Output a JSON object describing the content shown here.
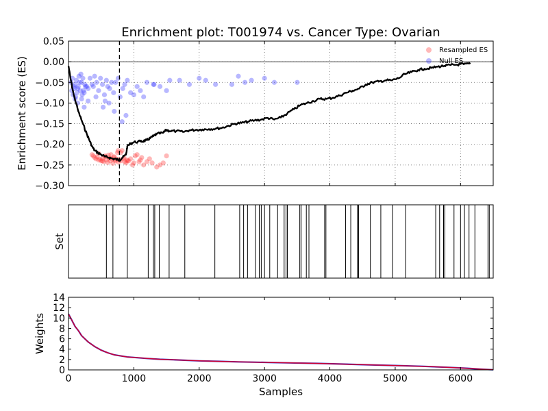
{
  "title": "Enrichment plot: T001974 vs. Cancer Type: Ovarian",
  "colors": {
    "es_line": "#000000",
    "resampled": "#ff3333",
    "null": "#3333ff",
    "weights_line": "#cc0033",
    "weights_edge": "#3333cc",
    "grid": "#666666"
  },
  "chart_data": [
    {
      "name": "es-panel",
      "type": "line+scatter",
      "title": "Enrichment plot: T001974 vs. Cancer Type: Ovarian",
      "xlabel": "",
      "ylabel": "Enrichment score (ES)",
      "xlim": [
        0,
        6500
      ],
      "ylim": [
        -0.3,
        0.05
      ],
      "yticks": [
        -0.3,
        -0.25,
        -0.2,
        -0.15,
        -0.1,
        -0.05,
        0.0,
        0.05
      ],
      "ytick_labels": [
        "−0.30",
        "−0.25",
        "−0.20",
        "−0.15",
        "−0.10",
        "−0.05",
        "0.00",
        "0.05"
      ],
      "xticks": [
        1000,
        2000,
        3000,
        4000,
        5000,
        6000
      ],
      "grid": true,
      "legend": {
        "placement": "top-right",
        "entries": [
          "Resampled ES",
          "Null ES"
        ]
      },
      "vline_x": 780,
      "es_curve": {
        "x": [
          0,
          30,
          80,
          150,
          220,
          280,
          320,
          360,
          400,
          450,
          500,
          560,
          620,
          680,
          730,
          780,
          820,
          880,
          900,
          950,
          1000,
          1100,
          1150,
          1200,
          1250,
          1300,
          1350,
          1450,
          1500,
          1550,
          1650,
          1750,
          1850,
          1950,
          2050,
          2150,
          2250,
          2350,
          2450,
          2550,
          2650,
          2750,
          2850,
          2950,
          3050,
          3150,
          3250,
          3350,
          3450,
          3550,
          3650,
          3750,
          3850,
          3950,
          4050,
          4150,
          4250,
          4350,
          4450,
          4550,
          4650,
          4750,
          4850,
          4950,
          5050,
          5150,
          5250,
          5350,
          5450,
          5550,
          5650,
          5750,
          5850,
          5950,
          6050,
          6150
        ],
        "y": [
          -0.01,
          -0.04,
          -0.08,
          -0.12,
          -0.15,
          -0.175,
          -0.19,
          -0.205,
          -0.215,
          -0.22,
          -0.225,
          -0.23,
          -0.232,
          -0.235,
          -0.236,
          -0.238,
          -0.233,
          -0.225,
          -0.205,
          -0.198,
          -0.195,
          -0.193,
          -0.192,
          -0.19,
          -0.185,
          -0.18,
          -0.175,
          -0.172,
          -0.165,
          -0.168,
          -0.168,
          -0.17,
          -0.166,
          -0.165,
          -0.164,
          -0.163,
          -0.162,
          -0.16,
          -0.155,
          -0.15,
          -0.148,
          -0.145,
          -0.142,
          -0.14,
          -0.136,
          -0.14,
          -0.135,
          -0.125,
          -0.115,
          -0.105,
          -0.1,
          -0.095,
          -0.09,
          -0.09,
          -0.087,
          -0.082,
          -0.075,
          -0.07,
          -0.065,
          -0.055,
          -0.05,
          -0.048,
          -0.045,
          -0.045,
          -0.04,
          -0.03,
          -0.025,
          -0.02,
          -0.017,
          -0.015,
          -0.012,
          -0.01,
          -0.008,
          -0.007,
          -0.006,
          -0.005
        ]
      },
      "resampled_es": {
        "x": [
          360,
          380,
          400,
          420,
          440,
          460,
          480,
          500,
          520,
          540,
          560,
          580,
          600,
          620,
          640,
          660,
          680,
          700,
          720,
          740,
          760,
          780,
          800,
          820,
          840,
          860,
          880,
          900,
          920,
          950,
          980,
          1000,
          1020,
          1050,
          1080,
          1100,
          1120,
          1150,
          1200,
          1240,
          1280,
          1350,
          1400,
          1450,
          1500,
          460,
          520,
          560,
          610,
          650,
          700,
          750,
          800,
          850,
          900,
          700,
          760
        ],
        "y": [
          -0.225,
          -0.228,
          -0.232,
          -0.235,
          -0.23,
          -0.238,
          -0.236,
          -0.24,
          -0.234,
          -0.242,
          -0.23,
          -0.238,
          -0.244,
          -0.233,
          -0.24,
          -0.235,
          -0.246,
          -0.238,
          -0.24,
          -0.236,
          -0.243,
          -0.237,
          -0.24,
          -0.215,
          -0.235,
          -0.242,
          -0.245,
          -0.238,
          -0.24,
          -0.235,
          -0.25,
          -0.245,
          -0.228,
          -0.225,
          -0.242,
          -0.238,
          -0.232,
          -0.25,
          -0.242,
          -0.235,
          -0.245,
          -0.255,
          -0.25,
          -0.245,
          -0.228,
          -0.222,
          -0.24,
          -0.228,
          -0.226,
          -0.225,
          -0.232,
          -0.22,
          -0.22,
          -0.232,
          -0.24,
          -0.23,
          -0.215
        ]
      },
      "null_es": {
        "x": [
          40,
          60,
          80,
          100,
          120,
          140,
          160,
          180,
          200,
          220,
          240,
          260,
          50,
          70,
          90,
          110,
          130,
          150,
          170,
          190,
          210,
          230,
          250,
          280,
          300,
          330,
          360,
          380,
          400,
          430,
          460,
          490,
          520,
          550,
          580,
          600,
          630,
          660,
          690,
          720,
          760,
          790,
          830,
          860,
          900,
          950,
          1000,
          1050,
          1100,
          1150,
          1200,
          1300,
          1400,
          1500,
          1550,
          1700,
          1850,
          2000,
          2100,
          2250,
          2500,
          2600,
          2700,
          2800,
          3000,
          3150,
          3500,
          200,
          300,
          420,
          530,
          620,
          700,
          820,
          880,
          560,
          140,
          240,
          100,
          1310
        ],
        "y": [
          -0.05,
          -0.04,
          -0.06,
          -0.055,
          -0.045,
          -0.065,
          -0.035,
          -0.07,
          -0.05,
          -0.04,
          -0.075,
          -0.06,
          -0.07,
          -0.08,
          -0.065,
          -0.085,
          -0.075,
          -0.06,
          -0.05,
          -0.03,
          -0.08,
          -0.07,
          -0.055,
          -0.06,
          -0.065,
          -0.04,
          -0.055,
          -0.06,
          -0.035,
          -0.05,
          -0.07,
          -0.04,
          -0.055,
          -0.08,
          -0.045,
          -0.06,
          -0.065,
          -0.05,
          -0.075,
          -0.05,
          -0.04,
          -0.085,
          -0.065,
          -0.055,
          -0.045,
          -0.075,
          -0.08,
          -0.06,
          -0.07,
          -0.085,
          -0.05,
          -0.055,
          -0.06,
          -0.07,
          -0.045,
          -0.045,
          -0.055,
          -0.04,
          -0.045,
          -0.055,
          -0.055,
          -0.035,
          -0.05,
          -0.045,
          -0.04,
          -0.05,
          -0.05,
          -0.09,
          -0.095,
          -0.085,
          -0.11,
          -0.1,
          -0.12,
          -0.145,
          -0.13,
          -0.095,
          -0.1,
          -0.11,
          -0.09,
          -0.055
        ]
      }
    },
    {
      "name": "set-panel",
      "type": "event-lines",
      "xlabel": "",
      "ylabel": "Set",
      "xlim": [
        0,
        6500
      ],
      "positions": [
        580,
        680,
        900,
        1220,
        1300,
        1320,
        1390,
        1540,
        1780,
        2240,
        2620,
        2680,
        2740,
        2860,
        2920,
        2950,
        3000,
        3080,
        3200,
        3300,
        3330,
        3350,
        3540,
        3560,
        3640,
        3680,
        3920,
        3940,
        4240,
        4320,
        4420,
        4440,
        4620,
        4780,
        4960,
        5160,
        5620,
        5680,
        5740,
        5760,
        5900,
        6000,
        6060,
        6130,
        6220,
        6420,
        6440
      ]
    },
    {
      "name": "weights-panel",
      "type": "line",
      "xlabel": "Samples",
      "ylabel": "Weights",
      "xlim": [
        0,
        6500
      ],
      "ylim": [
        0,
        14
      ],
      "yticks": [
        0,
        2,
        4,
        6,
        8,
        10,
        12,
        14
      ],
      "xticks": [
        0,
        1000,
        2000,
        3000,
        4000,
        5000,
        6000
      ],
      "weights_curve": {
        "x": [
          0,
          25,
          50,
          100,
          150,
          200,
          300,
          400,
          500,
          600,
          700,
          800,
          900,
          1000,
          1200,
          1400,
          1600,
          1800,
          2000,
          2300,
          2600,
          3000,
          3400,
          3800,
          4200,
          4600,
          5000,
          5400,
          5800,
          6100,
          6300,
          6500
        ],
        "y": [
          10.8,
          10.2,
          9.6,
          8.4,
          7.6,
          6.6,
          5.4,
          4.5,
          3.8,
          3.3,
          2.9,
          2.7,
          2.5,
          2.4,
          2.2,
          2.05,
          1.95,
          1.85,
          1.75,
          1.65,
          1.55,
          1.45,
          1.35,
          1.25,
          1.12,
          0.98,
          0.85,
          0.7,
          0.5,
          0.32,
          0.15,
          0.02
        ]
      }
    }
  ]
}
